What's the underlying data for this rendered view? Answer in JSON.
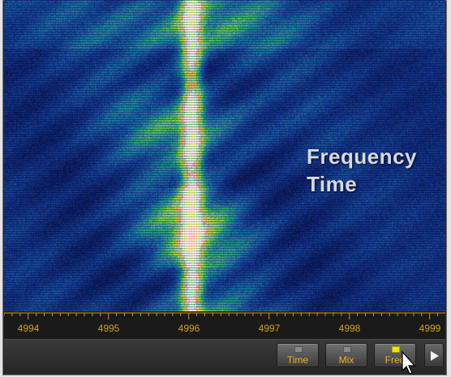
{
  "spectrogram": {
    "overlay_lines": [
      "Frequency",
      "Time"
    ]
  },
  "axis": {
    "ticks": [
      "4994",
      "4995",
      "4996",
      "4997",
      "4998",
      "4999"
    ],
    "unit_label": ""
  },
  "toolbar": {
    "buttons": [
      {
        "label": "Time",
        "active": false
      },
      {
        "label": "Mix",
        "active": false
      },
      {
        "label": "Freq",
        "active": true
      }
    ],
    "next_icon": "play-triangle-icon"
  },
  "colors": {
    "axis_text": "#d4a21c",
    "button_text": "#f0b020",
    "active_led": "#f5e500",
    "background": "#0a1a5a"
  }
}
